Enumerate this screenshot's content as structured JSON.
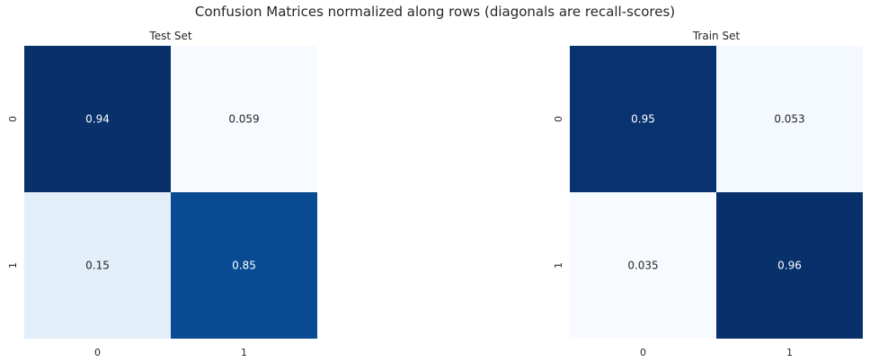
{
  "figure": {
    "suptitle": "Confusion Matrices normalized along rows (diagonals are recall-scores)"
  },
  "chart_data": [
    {
      "type": "heatmap",
      "title": "Test Set",
      "x_categories": [
        "0",
        "1"
      ],
      "y_categories": [
        "0",
        "1"
      ],
      "values": [
        [
          0.94,
          0.059
        ],
        [
          0.15,
          0.85
        ]
      ],
      "value_labels": [
        [
          "0.94",
          "0.059"
        ],
        [
          "0.15",
          "0.85"
        ]
      ],
      "colormap": "Blues",
      "colorbar": false,
      "grid": false
    },
    {
      "type": "heatmap",
      "title": "Train Set",
      "x_categories": [
        "0",
        "1"
      ],
      "y_categories": [
        "0",
        "1"
      ],
      "values": [
        [
          0.95,
          0.053
        ],
        [
          0.035,
          0.96
        ]
      ],
      "value_labels": [
        [
          "0.95",
          "0.053"
        ],
        [
          "0.035",
          "0.96"
        ]
      ],
      "colormap": "Blues",
      "colorbar": false,
      "grid": false
    }
  ]
}
